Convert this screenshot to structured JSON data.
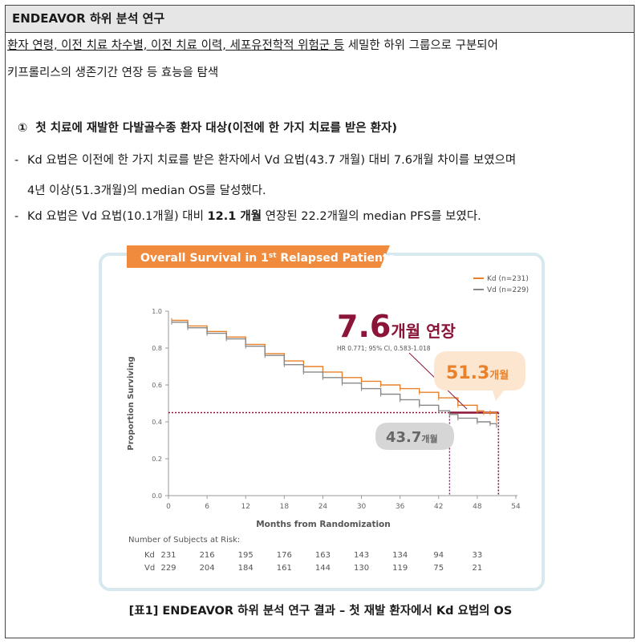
{
  "header": {
    "title": "ENDEAVOR 하위 분석 연구"
  },
  "intro": {
    "line1_underlined": "환자 연령, 이전 치료 차수별, 이전 치료 이력, 세포유전학적 위험군 등",
    "line1_rest": " 세밀한 하위 그룹으로 구분되어",
    "line2": "키프롤리스의 생존기간 연장 등 효능을 탐색"
  },
  "section": {
    "marker": "①",
    "title": "첫 치료에 재발한 다발골수종 환자 대상(이전에 한 가지 치료를 받은 환자)",
    "bullet1_line1": "Kd 요법은 이전에 한 가지 치료를 받은 환자에서 Vd 요법(43.7 개월) 대비 7.6개월 차이를 보였으며",
    "bullet1_line2": "4년 이상(51.3개월)의 median OS를 달성했다.",
    "bullet2_pre": "Kd 요법은 Vd 요법(10.1개월) 대비 ",
    "bullet2_bold": "12.1 개월",
    "bullet2_post": " 연장된 22.2개월의 median PFS를 보였다."
  },
  "chart_data": {
    "type": "line",
    "title_main": "Overall Survival in 1",
    "title_sup": "st",
    "title_end": " Relapsed Patients",
    "xlabel": "Months from Randomization",
    "ylabel": "Proportion Surviving",
    "xlim": [
      0,
      54
    ],
    "ylim": [
      0,
      1.0
    ],
    "xticks": [
      0,
      6,
      12,
      18,
      24,
      30,
      36,
      42,
      48,
      54
    ],
    "yticks": [
      "0.0",
      "0.2",
      "0.4",
      "0.6",
      "0.8",
      "1.0"
    ],
    "series": [
      {
        "name": "Kd (n=231)",
        "color": "#e8812a",
        "x": [
          0.5,
          3,
          6,
          9,
          12,
          15,
          18,
          21,
          24,
          27,
          30,
          33,
          36,
          39,
          42,
          45,
          48,
          49,
          50,
          51
        ],
        "y": [
          0.95,
          0.92,
          0.89,
          0.86,
          0.82,
          0.77,
          0.73,
          0.7,
          0.67,
          0.64,
          0.62,
          0.6,
          0.58,
          0.56,
          0.53,
          0.49,
          0.46,
          0.45,
          0.45,
          0.41
        ]
      },
      {
        "name": "Vd (n=229)",
        "color": "#888888",
        "x": [
          0.5,
          3,
          6,
          9,
          12,
          15,
          18,
          21,
          24,
          27,
          30,
          33,
          36,
          39,
          42,
          43.7,
          45,
          48,
          50,
          51
        ],
        "y": [
          0.94,
          0.91,
          0.88,
          0.85,
          0.81,
          0.76,
          0.71,
          0.67,
          0.64,
          0.61,
          0.58,
          0.55,
          0.52,
          0.49,
          0.46,
          0.44,
          0.42,
          0.4,
          0.39,
          0.38
        ]
      }
    ],
    "median_line_y": 0.45,
    "medians": {
      "vd": 43.7,
      "kd": 51.3
    },
    "annotation": {
      "big": "7.6",
      "big_suffix": "개월 연장",
      "hr": "HR 0.771; 95% CI, 0.583-1.018"
    },
    "callouts": {
      "kd_value": "51.3",
      "kd_unit": "개월",
      "vd_value": "43.7",
      "vd_unit": "개월"
    },
    "risk_table": {
      "title": "Number of Subjects at Risk:",
      "rows": [
        {
          "label": "Kd",
          "values": [
            "231",
            "216",
            "195",
            "176",
            "163",
            "143",
            "134",
            "94",
            "33"
          ]
        },
        {
          "label": "Vd",
          "values": [
            "229",
            "204",
            "184",
            "161",
            "144",
            "130",
            "119",
            "75",
            "21"
          ]
        }
      ]
    },
    "colors": {
      "kd": "#e8812a",
      "vd": "#888888",
      "banner": "#f08a3c",
      "accent": "#8b1538",
      "frame": "#d7e9ee"
    }
  },
  "caption": "[표1] ENDEAVOR 하위 분석 연구 결과 – 첫 재발 환자에서 Kd 요법의 OS"
}
